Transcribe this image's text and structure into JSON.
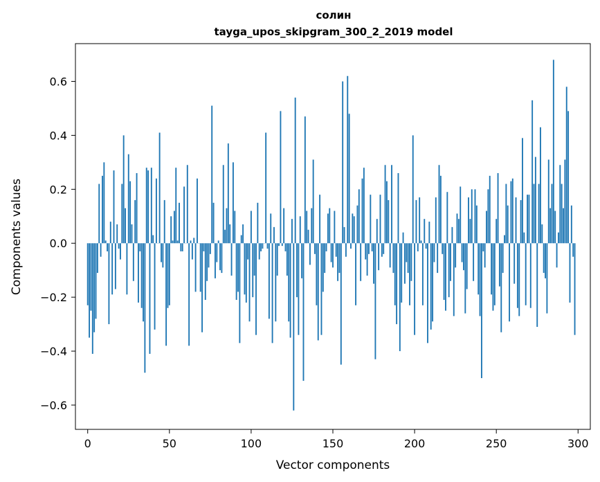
{
  "chart_data": {
    "type": "bar",
    "title": "солин",
    "subtitle": "tayga_upos_skipgram_300_2_2019 model",
    "xlabel": "Vector components",
    "ylabel": "Components values",
    "xlim": [
      -7.5,
      307.5
    ],
    "ylim": [
      -0.69,
      0.74
    ],
    "xticks": [
      0,
      50,
      100,
      150,
      200,
      250,
      300
    ],
    "xtick_labels": [
      "0",
      "50",
      "100",
      "150",
      "200",
      "250",
      "300"
    ],
    "yticks": [
      -0.6,
      -0.4,
      -0.2,
      0.0,
      0.2,
      0.4,
      0.6
    ],
    "ytick_labels": [
      "−0.6",
      "−0.4",
      "−0.2",
      "0.0",
      "0.2",
      "0.4",
      "0.6"
    ],
    "bar_color": "#1f77b4",
    "grid": false,
    "x": "0..299",
    "values": [
      -0.23,
      -0.35,
      -0.25,
      -0.41,
      -0.33,
      -0.28,
      -0.11,
      0.22,
      -0.05,
      0.25,
      0.3,
      0.01,
      -0.03,
      -0.3,
      0.08,
      -0.19,
      0.27,
      -0.17,
      0.07,
      -0.02,
      -0.06,
      0.22,
      0.4,
      0.13,
      -0.19,
      0.33,
      0.23,
      0.07,
      -0.14,
      0.16,
      0.26,
      -0.22,
      -0.03,
      -0.24,
      -0.29,
      -0.48,
      0.28,
      0.27,
      -0.41,
      0.28,
      0.03,
      -0.32,
      0.24,
      0.0,
      0.41,
      -0.07,
      -0.09,
      0.16,
      -0.38,
      -0.24,
      -0.23,
      0.1,
      0.01,
      0.12,
      0.28,
      0.01,
      0.15,
      -0.03,
      -0.03,
      0.21,
      0.0,
      0.29,
      -0.38,
      0.01,
      -0.06,
      0.02,
      -0.18,
      0.24,
      0.0,
      -0.18,
      -0.33,
      -0.03,
      -0.21,
      -0.14,
      -0.09,
      -0.04,
      0.51,
      0.15,
      -0.13,
      -0.07,
      0.01,
      -0.1,
      -0.11,
      0.29,
      0.05,
      0.13,
      0.37,
      0.07,
      -0.12,
      0.3,
      0.12,
      -0.21,
      -0.18,
      -0.37,
      0.03,
      0.07,
      -0.19,
      -0.22,
      -0.06,
      -0.29,
      0.12,
      -0.2,
      -0.12,
      -0.34,
      0.15,
      -0.06,
      -0.03,
      -0.02,
      0.0,
      0.41,
      -0.02,
      -0.28,
      0.11,
      -0.37,
      0.06,
      -0.29,
      -0.12,
      -0.01,
      0.49,
      -0.01,
      0.13,
      -0.03,
      -0.12,
      -0.29,
      -0.35,
      0.09,
      -0.62,
      0.54,
      -0.2,
      -0.34,
      0.1,
      -0.13,
      -0.51,
      0.47,
      0.12,
      0.05,
      -0.08,
      0.13,
      0.31,
      -0.04,
      -0.23,
      -0.36,
      0.18,
      -0.34,
      -0.18,
      -0.11,
      -0.03,
      0.11,
      0.13,
      -0.07,
      -0.09,
      0.12,
      -0.05,
      -0.14,
      -0.11,
      -0.45,
      0.6,
      0.06,
      -0.05,
      0.62,
      0.48,
      -0.02,
      0.11,
      0.1,
      -0.23,
      0.14,
      0.2,
      -0.14,
      0.24,
      0.28,
      -0.06,
      -0.12,
      -0.04,
      0.18,
      -0.03,
      -0.15,
      -0.43,
      0.09,
      -0.1,
      0.18,
      -0.05,
      -0.04,
      0.29,
      0.23,
      0.16,
      -0.09,
      0.29,
      -0.11,
      -0.23,
      -0.3,
      0.26,
      -0.4,
      -0.22,
      0.04,
      -0.15,
      -0.07,
      -0.11,
      -0.23,
      -0.14,
      0.4,
      -0.34,
      0.16,
      -0.03,
      0.17,
      0.01,
      -0.23,
      0.09,
      -0.02,
      -0.37,
      0.08,
      -0.32,
      -0.29,
      -0.07,
      0.17,
      -0.11,
      0.29,
      0.25,
      -0.04,
      -0.21,
      -0.25,
      0.19,
      -0.2,
      -0.14,
      0.06,
      -0.27,
      -0.09,
      0.11,
      0.09,
      0.21,
      -0.07,
      -0.1,
      -0.26,
      -0.17,
      0.17,
      0.09,
      0.2,
      -0.14,
      0.2,
      0.14,
      -0.19,
      -0.27,
      -0.5,
      -0.03,
      -0.09,
      0.12,
      0.2,
      0.25,
      -0.19,
      -0.25,
      -0.23,
      0.09,
      0.26,
      -0.16,
      -0.33,
      -0.11,
      0.03,
      0.22,
      0.14,
      -0.29,
      0.23,
      0.24,
      -0.15,
      0.17,
      -0.24,
      -0.27,
      0.16,
      0.39,
      0.04,
      -0.23,
      0.18,
      0.18,
      -0.24,
      0.53,
      0.22,
      0.32,
      -0.31,
      0.22,
      0.43,
      0.07,
      -0.11,
      -0.13,
      -0.26,
      0.31,
      0.13,
      0.22,
      0.68,
      0.12,
      -0.09,
      0.04,
      0.29,
      0.22,
      0.13,
      0.31,
      0.58,
      0.49,
      -0.22,
      0.14,
      -0.05,
      -0.34
    ]
  }
}
